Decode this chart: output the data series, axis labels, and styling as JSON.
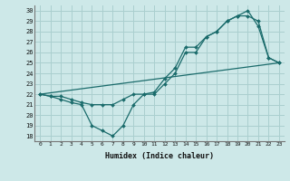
{
  "xlabel": "Humidex (Indice chaleur)",
  "background_color": "#cde8e8",
  "grid_color": "#aacfcf",
  "line_color": "#1a6b6b",
  "xlim": [
    -0.5,
    23.5
  ],
  "ylim": [
    17.5,
    30.5
  ],
  "xticks": [
    0,
    1,
    2,
    3,
    4,
    5,
    6,
    7,
    8,
    9,
    10,
    11,
    12,
    13,
    14,
    15,
    16,
    17,
    18,
    19,
    20,
    21,
    22,
    23
  ],
  "yticks": [
    18,
    19,
    20,
    21,
    22,
    23,
    24,
    25,
    26,
    27,
    28,
    29,
    30
  ],
  "line1_x": [
    0,
    1,
    2,
    3,
    4,
    5,
    6,
    7,
    8,
    9,
    10,
    11,
    12,
    13,
    14,
    15,
    16,
    17,
    18,
    19,
    20,
    21,
    22,
    23
  ],
  "line1_y": [
    22,
    21.8,
    21.5,
    21.2,
    21.0,
    19.0,
    18.5,
    18.0,
    19.0,
    21.0,
    22.0,
    22.2,
    23.5,
    24.5,
    26.5,
    26.5,
    27.5,
    28.0,
    29.0,
    29.5,
    30.0,
    28.5,
    25.5,
    25.0
  ],
  "line2_x": [
    0,
    1,
    2,
    3,
    4,
    5,
    6,
    7,
    8,
    9,
    10,
    11,
    12,
    13,
    14,
    15,
    16,
    17,
    18,
    19,
    20,
    21,
    22,
    23
  ],
  "line2_y": [
    22,
    21.8,
    21.8,
    21.5,
    21.2,
    21.0,
    21.0,
    21.0,
    21.5,
    22.0,
    22.0,
    22.0,
    23.0,
    24.0,
    26.0,
    26.0,
    27.5,
    28.0,
    29.0,
    29.5,
    29.5,
    29.0,
    25.5,
    25.0
  ],
  "line3_x": [
    0,
    23
  ],
  "line3_y": [
    22,
    25.0
  ]
}
